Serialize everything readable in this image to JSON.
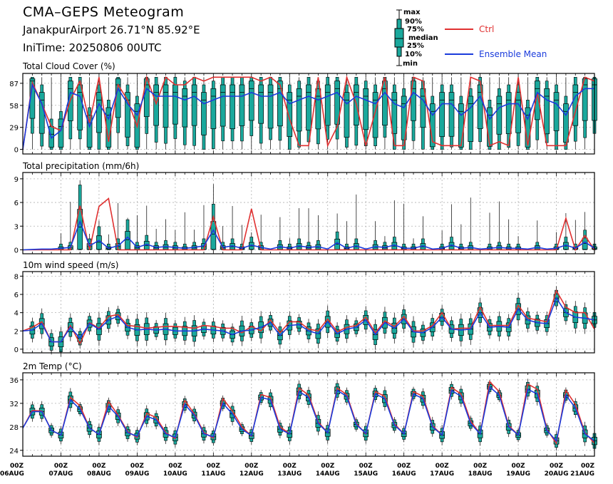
{
  "header": {
    "title": "CMA–GEPS Meteogram",
    "location": "JanakpurAirport 26.71°N 85.92°E",
    "init": "IniTime: 20250806 00UTC"
  },
  "legend": {
    "box_labels": [
      "max",
      "90%",
      "75%",
      "median",
      "25%",
      "10%",
      "min"
    ],
    "ctrl_label": "Ctrl",
    "mean_label": "Ensemble Mean",
    "ctrl_color": "#e03030",
    "mean_color": "#1a3bdc",
    "box_color": "#1aa89c"
  },
  "chart_data": [
    {
      "type": "line",
      "title": "Total Cloud Cover (%)",
      "ylim": [
        -6,
        100
      ],
      "yticks": [
        0,
        29,
        58,
        87
      ],
      "x": [
        0,
        1,
        2,
        3,
        4,
        5,
        6,
        7,
        8,
        9,
        10,
        11,
        12,
        13,
        14,
        15,
        16,
        17,
        18,
        19,
        20,
        21,
        22,
        23,
        24,
        25,
        26,
        27,
        28,
        29,
        30,
        31,
        32,
        33,
        34,
        35,
        36,
        37,
        38,
        39,
        40,
        41,
        42,
        43,
        44,
        45,
        46,
        47,
        48,
        49,
        50,
        51,
        52,
        53,
        54,
        55,
        56,
        57,
        58,
        59,
        60
      ],
      "series": [
        {
          "name": "Ctrl",
          "values": [
            0,
            88,
            60,
            30,
            25,
            65,
            90,
            35,
            95,
            10,
            85,
            65,
            30,
            95,
            60,
            95,
            85,
            85,
            95,
            90,
            95,
            95,
            95,
            95,
            95,
            90,
            95,
            85,
            40,
            5,
            5,
            95,
            5,
            30,
            95,
            60,
            5,
            50,
            95,
            5,
            5,
            95,
            90,
            10,
            5,
            5,
            5,
            95,
            90,
            5,
            10,
            5,
            95,
            5,
            75,
            5,
            5,
            5,
            50,
            95,
            90
          ]
        },
        {
          "name": "Ensemble Mean",
          "values": [
            0,
            85,
            60,
            15,
            25,
            75,
            70,
            30,
            60,
            40,
            80,
            60,
            45,
            80,
            70,
            70,
            70,
            65,
            70,
            60,
            65,
            70,
            70,
            70,
            75,
            70,
            70,
            75,
            60,
            65,
            70,
            65,
            70,
            75,
            60,
            70,
            65,
            60,
            75,
            60,
            55,
            75,
            65,
            45,
            60,
            60,
            45,
            55,
            70,
            40,
            55,
            60,
            60,
            40,
            75,
            65,
            60,
            45,
            70,
            80,
            80
          ]
        }
      ]
    },
    {
      "type": "line",
      "title": "Total precipitation (mm/6h)",
      "ylim": [
        -0.5,
        9.8
      ],
      "yticks": [
        0,
        3,
        6,
        9
      ],
      "x": [
        0,
        1,
        2,
        3,
        4,
        5,
        6,
        7,
        8,
        9,
        10,
        11,
        12,
        13,
        14,
        15,
        16,
        17,
        18,
        19,
        20,
        21,
        22,
        23,
        24,
        25,
        26,
        27,
        28,
        29,
        30,
        31,
        32,
        33,
        34,
        35,
        36,
        37,
        38,
        39,
        40,
        41,
        42,
        43,
        44,
        45,
        46,
        47,
        48,
        49,
        50,
        51,
        52,
        53,
        54,
        55,
        56,
        57,
        58,
        59,
        60
      ],
      "series": [
        {
          "name": "Ctrl",
          "values": [
            0,
            0,
            0,
            0,
            0,
            0,
            5.6,
            0,
            5.5,
            6.5,
            0,
            0,
            0,
            0,
            0,
            0,
            0,
            0,
            0,
            0,
            4.2,
            0,
            0,
            0,
            5.2,
            0,
            0,
            0,
            0,
            0,
            0,
            0,
            0,
            0,
            0,
            0,
            0,
            0,
            0,
            0,
            0,
            0,
            0,
            0,
            0,
            0,
            0,
            0,
            0,
            0,
            0,
            0,
            0,
            0,
            0,
            0,
            0,
            4.0,
            0,
            1.8,
            0
          ]
        },
        {
          "name": "Ensemble Mean",
          "values": [
            0,
            0.05,
            0.1,
            0.1,
            0.2,
            0.3,
            3.6,
            0.5,
            1.2,
            0.2,
            0.5,
            1.6,
            0.3,
            0.7,
            0.3,
            0.4,
            0.3,
            0.2,
            0.3,
            0.5,
            2.5,
            0.3,
            0.5,
            0.2,
            0.6,
            0.3,
            0.1,
            0.4,
            0.2,
            0.5,
            0.3,
            0.4,
            0.1,
            0.9,
            0.2,
            0.5,
            0.1,
            0.4,
            0.3,
            0.6,
            0.2,
            0.2,
            0.5,
            0.1,
            0.2,
            0.6,
            0.2,
            0.3,
            0.1,
            0.2,
            0.3,
            0.2,
            0.2,
            0.1,
            0.3,
            0.1,
            0.2,
            0.6,
            0.2,
            1.0,
            0.2
          ]
        }
      ]
    },
    {
      "type": "line",
      "title": "10m wind speed (m/s)",
      "ylim": [
        -0.4,
        8.5
      ],
      "yticks": [
        0,
        2,
        4,
        6,
        8
      ],
      "x": [
        0,
        1,
        2,
        3,
        4,
        5,
        6,
        7,
        8,
        9,
        10,
        11,
        12,
        13,
        14,
        15,
        16,
        17,
        18,
        19,
        20,
        21,
        22,
        23,
        24,
        25,
        26,
        27,
        28,
        29,
        30,
        31,
        32,
        33,
        34,
        35,
        36,
        37,
        38,
        39,
        40,
        41,
        42,
        43,
        44,
        45,
        46,
        47,
        48,
        49,
        50,
        51,
        52,
        53,
        54,
        55,
        56,
        57,
        58,
        59,
        60
      ],
      "series": [
        {
          "name": "Ctrl",
          "values": [
            2.0,
            2.4,
            3.0,
            0.8,
            0.8,
            2.6,
            0.6,
            2.9,
            2.3,
            3.6,
            3.8,
            2.6,
            2.5,
            2.3,
            2.4,
            2.5,
            2.5,
            2.4,
            2.3,
            2.6,
            2.5,
            2.3,
            2.3,
            1.8,
            2.5,
            2.0,
            3.2,
            1.8,
            3.0,
            3.0,
            2.2,
            2.0,
            3.3,
            1.9,
            2.4,
            2.6,
            3.5,
            1.8,
            3.1,
            2.5,
            3.6,
            2.0,
            2.0,
            2.6,
            4.0,
            2.2,
            2.3,
            2.3,
            4.6,
            2.6,
            2.6,
            2.6,
            4.8,
            3.4,
            3.2,
            3.0,
            6.4,
            4.6,
            4.0,
            4.0,
            2.2
          ]
        },
        {
          "name": "Ensemble Mean",
          "values": [
            2.0,
            2.1,
            2.8,
            0.8,
            0.8,
            2.4,
            1.2,
            2.8,
            2.2,
            3.2,
            3.6,
            2.4,
            2.1,
            2.2,
            2.1,
            2.2,
            2.0,
            2.0,
            2.0,
            2.2,
            2.1,
            2.0,
            1.6,
            2.0,
            2.1,
            2.4,
            2.9,
            1.5,
            2.6,
            2.7,
            2.0,
            1.7,
            3.0,
            1.7,
            2.2,
            2.4,
            3.2,
            1.6,
            2.9,
            2.3,
            3.3,
            1.9,
            1.8,
            2.4,
            3.5,
            2.2,
            2.1,
            2.2,
            4.0,
            2.4,
            2.5,
            2.4,
            4.4,
            3.2,
            2.9,
            2.8,
            5.6,
            4.0,
            3.5,
            3.4,
            3.2
          ]
        }
      ]
    },
    {
      "type": "line",
      "title": "2m Temp (°C)",
      "ylim": [
        23,
        37.2
      ],
      "yticks": [
        24,
        28,
        32,
        36
      ],
      "x": [
        0,
        1,
        2,
        3,
        4,
        5,
        6,
        7,
        8,
        9,
        10,
        11,
        12,
        13,
        14,
        15,
        16,
        17,
        18,
        19,
        20,
        21,
        22,
        23,
        24,
        25,
        26,
        27,
        28,
        29,
        30,
        31,
        32,
        33,
        34,
        35,
        36,
        37,
        38,
        39,
        40,
        41,
        42,
        43,
        44,
        45,
        46,
        47,
        48,
        49,
        50,
        51,
        52,
        53,
        54,
        55,
        56,
        57,
        58,
        59,
        60
      ],
      "series": [
        {
          "name": "Ctrl",
          "values": [
            27.8,
            30.8,
            30.7,
            27.4,
            26.6,
            33.0,
            31.6,
            27.8,
            26.7,
            32.3,
            30.0,
            27.2,
            26.2,
            30.3,
            29.6,
            27.0,
            26.0,
            32.5,
            30.2,
            27.0,
            26.1,
            32.8,
            30.7,
            28.0,
            26.4,
            33.5,
            33.0,
            28.0,
            26.8,
            34.6,
            33.4,
            28.8,
            27.0,
            34.6,
            33.5,
            28.6,
            26.8,
            34.0,
            33.2,
            28.5,
            26.8,
            34.0,
            33.2,
            28.2,
            26.6,
            34.7,
            33.6,
            29.0,
            26.8,
            35.7,
            34.0,
            28.2,
            26.6,
            35.3,
            34.4,
            27.6,
            25.2,
            34.2,
            31.8,
            27.0,
            25.2
          ]
        },
        {
          "name": "Ensemble Mean",
          "values": [
            27.8,
            30.6,
            30.6,
            27.4,
            26.6,
            32.6,
            31.0,
            27.8,
            26.7,
            31.5,
            29.8,
            27.0,
            26.4,
            29.8,
            29.2,
            26.8,
            26.2,
            31.8,
            30.0,
            26.8,
            26.3,
            32.0,
            30.2,
            27.6,
            26.5,
            33.0,
            32.6,
            27.6,
            26.8,
            34.0,
            33.0,
            28.6,
            27.0,
            34.2,
            33.2,
            28.4,
            26.9,
            33.6,
            32.8,
            28.3,
            26.8,
            33.6,
            32.8,
            28.0,
            26.6,
            34.2,
            33.2,
            28.6,
            26.8,
            34.8,
            33.4,
            28.0,
            26.6,
            34.4,
            33.6,
            27.4,
            25.6,
            33.4,
            31.2,
            26.8,
            25.6
          ]
        }
      ]
    }
  ],
  "xaxis": {
    "hour_label": "00Z",
    "dates": [
      "06AUG",
      "07AUG",
      "08AUG",
      "09AUG",
      "10AUG",
      "11AUG",
      "12AUG",
      "13AUG",
      "14AUG",
      "15AUG",
      "16AUG",
      "17AUG",
      "18AUG",
      "19AUG",
      "20AUG",
      "21AUG"
    ]
  }
}
